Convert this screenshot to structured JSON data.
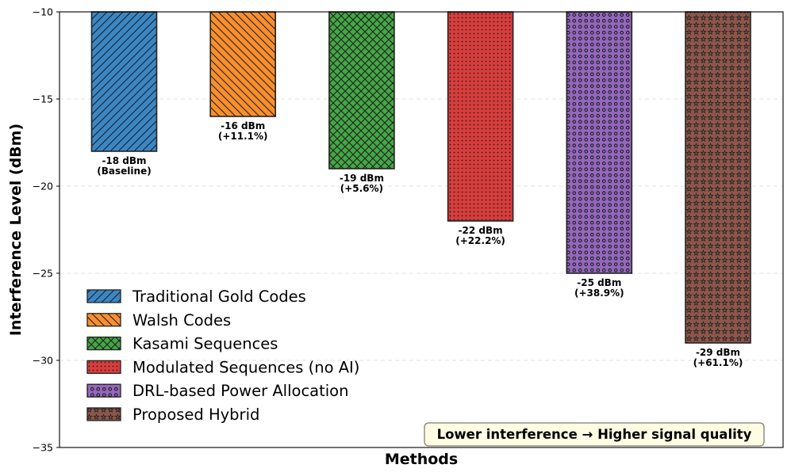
{
  "chart_data": {
    "type": "bar",
    "title": "",
    "xlabel": "Methods",
    "ylabel": "Interference Level (dBm)",
    "ylim": [
      -35,
      -10
    ],
    "yticks": [
      -10,
      -15,
      -20,
      -25,
      -30,
      -35
    ],
    "ytick_labels": [
      "−10",
      "−15",
      "−20",
      "−25",
      "−30",
      "−35"
    ],
    "grid": "horizontal dashed",
    "legend_position": "lower-left",
    "categories": [
      "Traditional Gold Codes",
      "Walsh Codes",
      "Kasami Sequences",
      "Modulated Sequences (no AI)",
      "DRL-based Power Allocation",
      "Proposed Hybrid"
    ],
    "values": [
      -18,
      -16,
      -19,
      -22,
      -25,
      -29
    ],
    "bar_labels": [
      [
        "-18 dBm",
        "(Baseline)"
      ],
      [
        "-16 dBm",
        "(+11.1%)"
      ],
      [
        "-19 dBm",
        "(+5.6%)"
      ],
      [
        "-22 dBm",
        "(+22.2%)"
      ],
      [
        "-25 dBm",
        "(+38.9%)"
      ],
      [
        "-29 dBm",
        "(+61.1%)"
      ]
    ],
    "colors": [
      "#3a87c5",
      "#f98f2c",
      "#44a745",
      "#d83d3c",
      "#9467bd",
      "#8c564b"
    ],
    "patterns": [
      "diagonal",
      "backdiagonal",
      "crosshatch",
      "dots",
      "circles",
      "stars"
    ],
    "annotation": "Lower interference → Higher signal quality"
  }
}
